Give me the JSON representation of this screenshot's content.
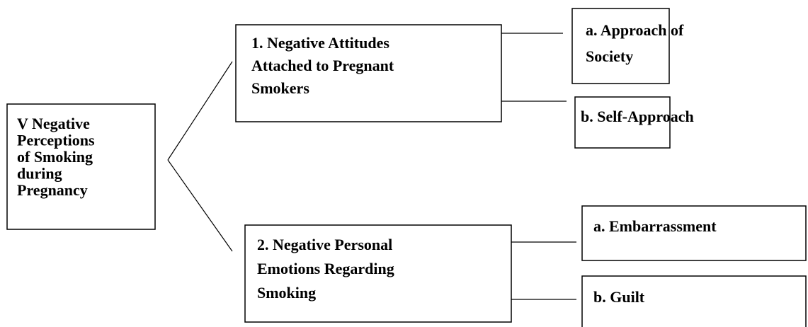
{
  "nodes": [
    {
      "lines": [
        "V Negative",
        "Perceptions",
        "of Smoking",
        "during",
        "Pregnancy"
      ]
    },
    {
      "lines": [
        "1. Negative Attitudes",
        "Attached to Pregnant",
        "Smokers"
      ]
    },
    {
      "lines": [
        "a. Approach of",
        "Society"
      ]
    },
    {
      "lines": [
        "b. Self-Approach"
      ]
    },
    {
      "lines": [
        "2. Negative Personal",
        "Emotions Regarding",
        "Smoking"
      ]
    },
    {
      "lines": [
        "a. Embarrassment"
      ]
    },
    {
      "lines": [
        "b. Guilt"
      ]
    }
  ]
}
